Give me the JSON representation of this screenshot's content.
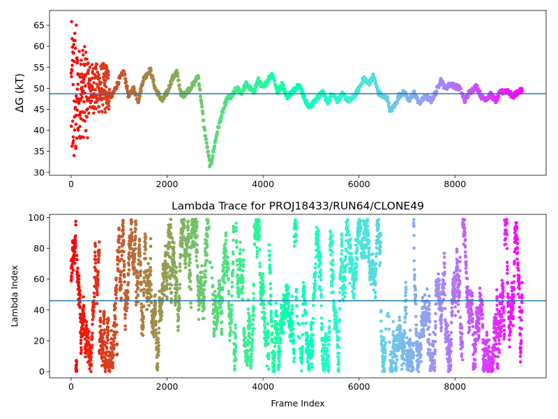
{
  "chart_data": [
    {
      "type": "scatter",
      "title": "",
      "xlabel": "",
      "ylabel": "ΔG (kT)",
      "xlim": [
        -450,
        9900
      ],
      "ylim": [
        29.3,
        68.5
      ],
      "xticks": [
        0,
        2000,
        4000,
        6000,
        8000
      ],
      "xtick_labels": [
        "0",
        "2000",
        "4000",
        "6000",
        "8000"
      ],
      "yticks": [
        30,
        35,
        40,
        45,
        50,
        55,
        60,
        65
      ],
      "ytick_labels": [
        "30",
        "35",
        "40",
        "45",
        "50",
        "55",
        "60",
        "65"
      ],
      "hline": 48.7,
      "hline_color": "#1f77b4",
      "colormap": "rainbow (red at frame 0 → violet at last frame)",
      "grid": false,
      "n_frames": 9400,
      "key_points": [
        {
          "x": 0,
          "y": 30
        },
        {
          "x": 30,
          "y": 66
        },
        {
          "x": 60,
          "y": 50
        },
        {
          "x": 150,
          "y": 48
        },
        {
          "x": 300,
          "y": 52
        },
        {
          "x": 500,
          "y": 50
        },
        {
          "x": 700,
          "y": 49
        },
        {
          "x": 850,
          "y": 48
        },
        {
          "x": 1000,
          "y": 52
        },
        {
          "x": 1100,
          "y": 54
        },
        {
          "x": 1200,
          "y": 48
        },
        {
          "x": 1300,
          "y": 50
        },
        {
          "x": 1400,
          "y": 47
        },
        {
          "x": 1500,
          "y": 52
        },
        {
          "x": 1650,
          "y": 54.5
        },
        {
          "x": 1750,
          "y": 50
        },
        {
          "x": 1900,
          "y": 47
        },
        {
          "x": 2000,
          "y": 49
        },
        {
          "x": 2100,
          "y": 52
        },
        {
          "x": 2200,
          "y": 54
        },
        {
          "x": 2300,
          "y": 48
        },
        {
          "x": 2400,
          "y": 49
        },
        {
          "x": 2550,
          "y": 51
        },
        {
          "x": 2650,
          "y": 53
        },
        {
          "x": 2700,
          "y": 48
        },
        {
          "x": 2780,
          "y": 40
        },
        {
          "x": 2850,
          "y": 35
        },
        {
          "x": 2900,
          "y": 31
        },
        {
          "x": 2950,
          "y": 34
        },
        {
          "x": 3050,
          "y": 40
        },
        {
          "x": 3150,
          "y": 44
        },
        {
          "x": 3250,
          "y": 47.5
        },
        {
          "x": 3350,
          "y": 48
        },
        {
          "x": 3450,
          "y": 50
        },
        {
          "x": 3550,
          "y": 49
        },
        {
          "x": 3650,
          "y": 51
        },
        {
          "x": 3800,
          "y": 49
        },
        {
          "x": 3900,
          "y": 52
        },
        {
          "x": 4000,
          "y": 50
        },
        {
          "x": 4100,
          "y": 52
        },
        {
          "x": 4200,
          "y": 53.5
        },
        {
          "x": 4300,
          "y": 49
        },
        {
          "x": 4400,
          "y": 51
        },
        {
          "x": 4500,
          "y": 48
        },
        {
          "x": 4600,
          "y": 49
        },
        {
          "x": 4750,
          "y": 51
        },
        {
          "x": 4850,
          "y": 48
        },
        {
          "x": 4950,
          "y": 45.5
        },
        {
          "x": 5050,
          "y": 46.5
        },
        {
          "x": 5150,
          "y": 48
        },
        {
          "x": 5250,
          "y": 49
        },
        {
          "x": 5350,
          "y": 46.5
        },
        {
          "x": 5450,
          "y": 49
        },
        {
          "x": 5550,
          "y": 47
        },
        {
          "x": 5650,
          "y": 48.5
        },
        {
          "x": 5800,
          "y": 47
        },
        {
          "x": 5900,
          "y": 48
        },
        {
          "x": 6000,
          "y": 50
        },
        {
          "x": 6100,
          "y": 52.5
        },
        {
          "x": 6200,
          "y": 51
        },
        {
          "x": 6300,
          "y": 53
        },
        {
          "x": 6400,
          "y": 49
        },
        {
          "x": 6500,
          "y": 48
        },
        {
          "x": 6600,
          "y": 47.5
        },
        {
          "x": 6650,
          "y": 44.5
        },
        {
          "x": 6750,
          "y": 46
        },
        {
          "x": 6850,
          "y": 48.5
        },
        {
          "x": 6950,
          "y": 49
        },
        {
          "x": 7050,
          "y": 47
        },
        {
          "x": 7150,
          "y": 49
        },
        {
          "x": 7250,
          "y": 46.5
        },
        {
          "x": 7400,
          "y": 48
        },
        {
          "x": 7500,
          "y": 47
        },
        {
          "x": 7600,
          "y": 49
        },
        {
          "x": 7700,
          "y": 52
        },
        {
          "x": 7800,
          "y": 50
        },
        {
          "x": 7900,
          "y": 51
        },
        {
          "x": 8000,
          "y": 50.5
        },
        {
          "x": 8100,
          "y": 50
        },
        {
          "x": 8200,
          "y": 47
        },
        {
          "x": 8300,
          "y": 49
        },
        {
          "x": 8450,
          "y": 50.5
        },
        {
          "x": 8550,
          "y": 48
        },
        {
          "x": 8650,
          "y": 47.5
        },
        {
          "x": 8750,
          "y": 48.5
        },
        {
          "x": 8850,
          "y": 47
        },
        {
          "x": 8950,
          "y": 49
        },
        {
          "x": 9100,
          "y": 49.5
        },
        {
          "x": 9200,
          "y": 48
        },
        {
          "x": 9300,
          "y": 49
        },
        {
          "x": 9400,
          "y": 49.5
        }
      ]
    },
    {
      "type": "scatter",
      "title": "Lambda Trace for PROJ18433/RUN64/CLONE49",
      "xlabel": "Frame Index",
      "ylabel": "Lambda Index",
      "xlim": [
        -450,
        9900
      ],
      "ylim": [
        -4,
        102
      ],
      "xticks": [
        0,
        2000,
        4000,
        6000,
        8000
      ],
      "xtick_labels": [
        "0",
        "2000",
        "4000",
        "6000",
        "8000"
      ],
      "yticks": [
        0,
        20,
        40,
        60,
        80,
        100
      ],
      "ytick_labels": [
        "0",
        "20",
        "40",
        "60",
        "80",
        "100"
      ],
      "hline": 46,
      "hline_color": "#1f77b4",
      "colormap": "rainbow (red at frame 0 → violet at last frame)",
      "grid": false,
      "n_frames": 9400,
      "lambda_range": [
        0,
        99
      ],
      "sparse_gaps": [
        [
          2850,
          2950
        ],
        [
          4700,
          4800
        ],
        [
          6550,
          6650
        ]
      ]
    }
  ]
}
